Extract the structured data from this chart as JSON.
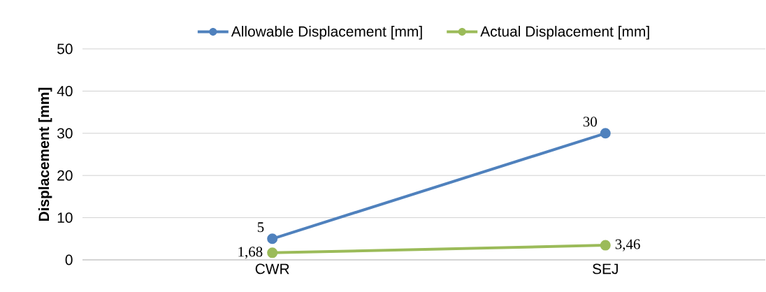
{
  "chart_data": {
    "type": "line",
    "categories": [
      "CWR",
      "SEJ"
    ],
    "ylabel": "Displacement [mm]",
    "ylim": [
      0,
      50
    ],
    "yticks": [
      0,
      10,
      20,
      30,
      40,
      50
    ],
    "grid": "y",
    "legend": "top",
    "marker": "circle",
    "line_style": "solid",
    "series": [
      {
        "name": "Allowable Displacement  [mm]",
        "color": "#4f81bd",
        "values": [
          5,
          30
        ],
        "value_labels": [
          "5",
          "30"
        ]
      },
      {
        "name": "Actual Displacement [mm]",
        "color": "#9bbb59",
        "values": [
          1.68,
          3.46
        ],
        "value_labels": [
          "1,68",
          "3,46"
        ]
      }
    ]
  }
}
